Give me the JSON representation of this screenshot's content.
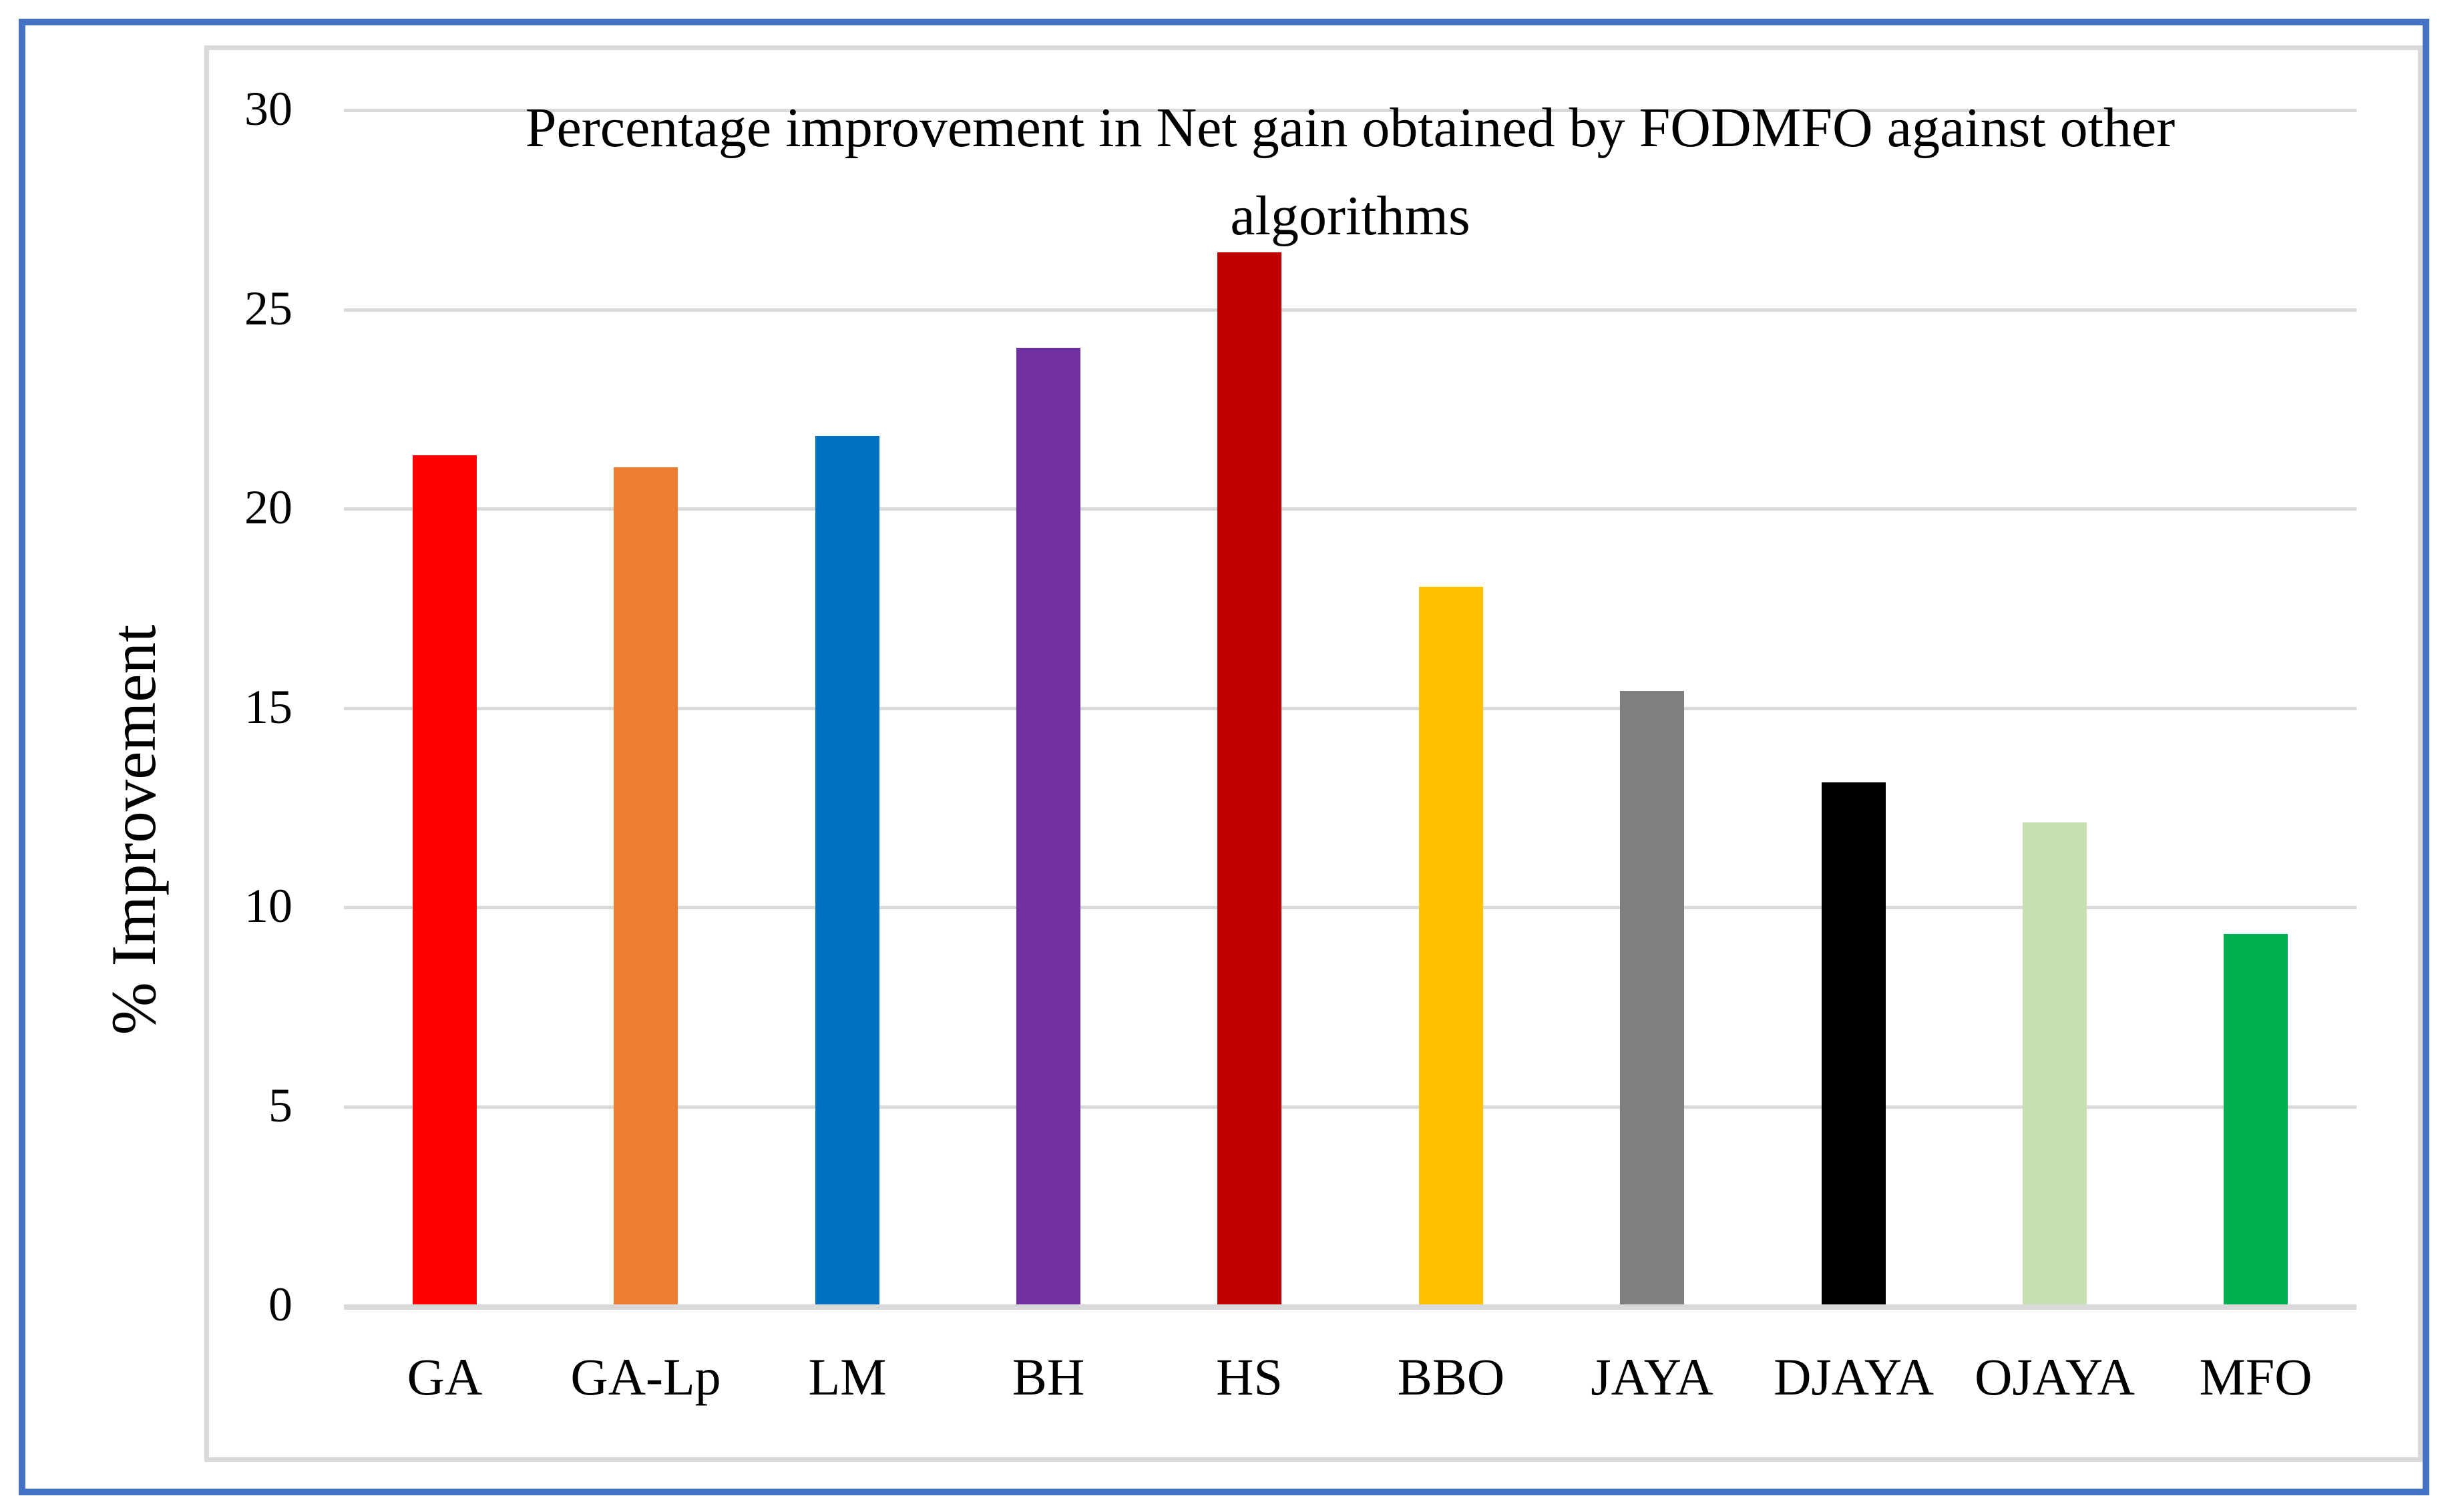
{
  "colors": {
    "frame_border": "#4472C4",
    "panel_border": "#D9D9D9",
    "gridline": "#D9D9D9",
    "axis_line": "#D9D9D9",
    "text": "#000000",
    "background": "#FFFFFF"
  },
  "chart_data": {
    "type": "bar",
    "title": "Percentage improvement in Net gain obtained by FODMFO against other algorithms",
    "title_lines": [
      "Percentage improvement in Net gain obtained by FODMFO against other",
      "algorithms"
    ],
    "xlabel": "",
    "ylabel": "% Improvement",
    "categories": [
      "GA",
      "GA-Lp",
      "LM",
      "BH",
      "HS",
      "BBO",
      "JAYA",
      "DJAYA",
      "OJAYA",
      "MFO"
    ],
    "values": [
      21.3,
      21.0,
      21.8,
      24.0,
      26.4,
      18.0,
      15.4,
      13.1,
      12.1,
      9.3
    ],
    "colors": [
      "#FF0000",
      "#ED7D31",
      "#0070C0",
      "#7030A0",
      "#C00000",
      "#FFC000",
      "#7F7F7F",
      "#000000",
      "#C6E0B4",
      "#00B050"
    ],
    "ylim": [
      0,
      30
    ],
    "yticks": [
      0,
      5,
      10,
      15,
      20,
      25,
      30
    ],
    "grid": "horizontal",
    "legend_position": "none"
  }
}
